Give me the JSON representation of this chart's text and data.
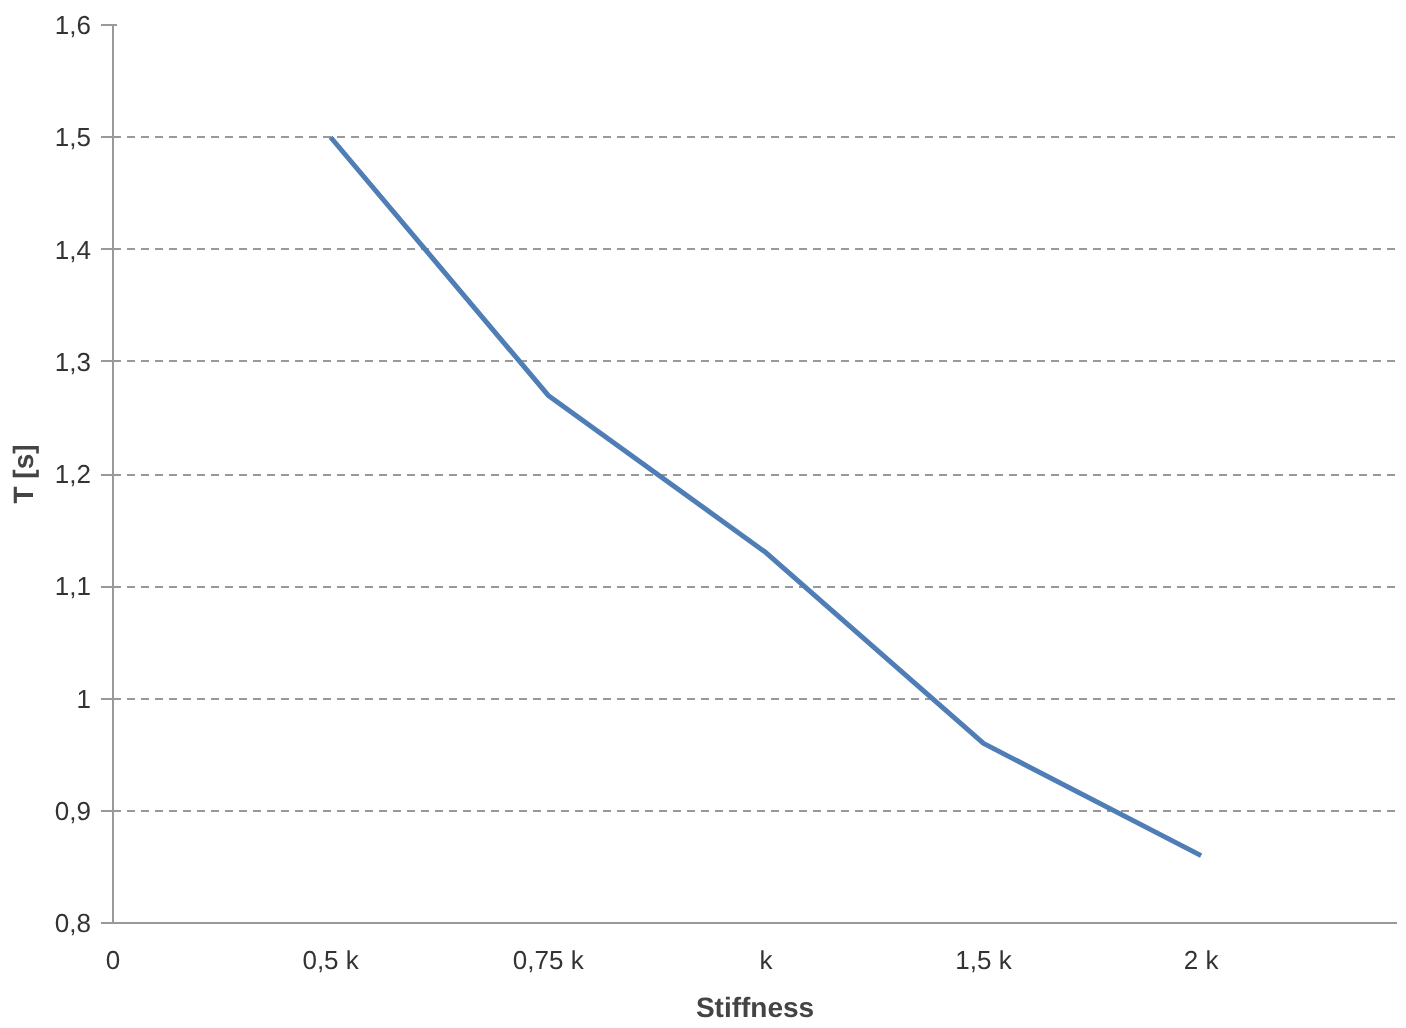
{
  "chart_data": {
    "type": "line",
    "xlabel": "Stiffness",
    "ylabel": "T [s]",
    "categories": [
      "0",
      "0,5 k",
      "0,75 k",
      "k",
      "1,5 k",
      "2 k"
    ],
    "series": [
      {
        "color": "#4f7db5",
        "values": [
          null,
          1.5,
          1.27,
          1.13,
          0.96,
          0.86
        ]
      }
    ],
    "ylim": [
      0.8,
      1.6
    ],
    "yticks": [
      {
        "value": 0.8,
        "label": "0,8"
      },
      {
        "value": 0.9,
        "label": "0,9"
      },
      {
        "value": 1,
        "label": "1"
      },
      {
        "value": 1.1,
        "label": "1,1"
      },
      {
        "value": 1.2,
        "label": "1,2"
      },
      {
        "value": 1.3,
        "label": "1,3"
      },
      {
        "value": 1.4,
        "label": "1,4"
      },
      {
        "value": 1.5,
        "label": "1,5"
      },
      {
        "value": 1.6,
        "label": "1,6"
      }
    ],
    "grid": "y",
    "line_style": "solid"
  }
}
